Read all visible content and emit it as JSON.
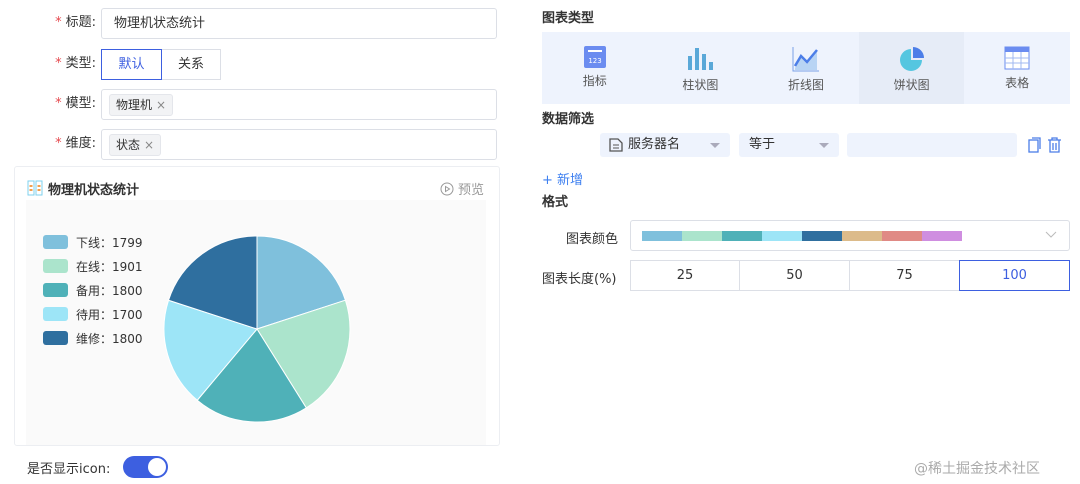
{
  "form": {
    "title_label": "标题:",
    "title_value": "物理机状态统计",
    "type_label": "类型:",
    "type_options": [
      "默认",
      "关系"
    ],
    "type_selected": "默认",
    "model_label": "模型:",
    "model_tags": [
      "物理机"
    ],
    "dim_label": "维度:",
    "dim_tags": [
      "状态"
    ],
    "show_icon_label": "是否显示icon:",
    "show_icon": true
  },
  "card": {
    "title": "物理机状态统计",
    "preview": "预览"
  },
  "chart_data": {
    "type": "pie",
    "title": "",
    "categories": [
      "下线",
      "在线",
      "备用",
      "待用",
      "维修"
    ],
    "values": [
      1799,
      1901,
      1800,
      1700,
      1800
    ],
    "colors": [
      "#7fc0dc",
      "#abe4cc",
      "#4fb1b8",
      "#9de5f7",
      "#2f6f9f"
    ],
    "legend_placement": "left",
    "start": "top",
    "direction": "clockwise",
    "legend_labels": [
      "下线：1799",
      "在线：1901",
      "备用：1800",
      "待用：1700",
      "维修：1800"
    ]
  },
  "chart_types": {
    "heading": "图表类型",
    "items": [
      "指标",
      "柱状图",
      "折线图",
      "饼状图",
      "表格"
    ],
    "selected": "饼状图"
  },
  "filter": {
    "heading": "数据筛选",
    "field": "服务器名",
    "op": "等于",
    "value": "",
    "add": "+ 新增"
  },
  "format": {
    "heading": "格式",
    "color_label": "图表颜色",
    "palette": [
      "#7fc0dc",
      "#abe4cc",
      "#4fb1b8",
      "#9de5f7",
      "#2f6f9f",
      "#dcbb8a",
      "#e08a85",
      "#cf8ee0"
    ],
    "length_label": "图表长度(%)",
    "length_options": [
      "25",
      "50",
      "75",
      "100"
    ],
    "length_selected": "100"
  },
  "watermark": "@稀土掘金技术社区",
  "colors": {
    "accent": "#3d5fe0"
  }
}
